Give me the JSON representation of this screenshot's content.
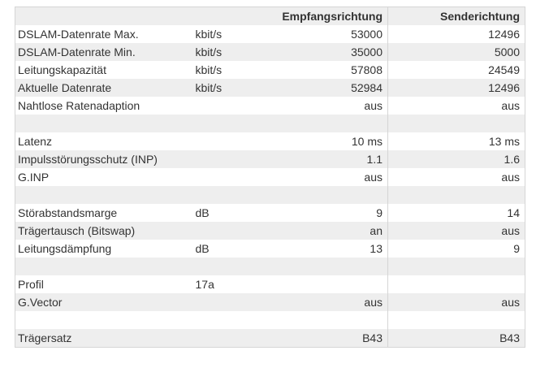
{
  "page": {
    "background_color": "#ffffff"
  },
  "colors": {
    "row_alt_bg": "#eeeeee",
    "header_bg": "#eeeeee",
    "border": "#d5d5d5",
    "text": "#333333"
  },
  "table": {
    "col_headers": [
      "",
      "",
      "Empfangsrichtung",
      "Senderichtung"
    ],
    "rows": [
      {
        "label": "DSLAM-Datenrate Max.",
        "unit": "kbit/s",
        "rx": "53000",
        "tx": "12496"
      },
      {
        "label": "DSLAM-Datenrate Min.",
        "unit": "kbit/s",
        "rx": "35000",
        "tx": "5000"
      },
      {
        "label": "Leitungskapazität",
        "unit": "kbit/s",
        "rx": "57808",
        "tx": "24549"
      },
      {
        "label": "Aktuelle Datenrate",
        "unit": "kbit/s",
        "rx": "52984",
        "tx": "12496"
      },
      {
        "label": "Nahtlose Ratenadaption",
        "unit": "",
        "rx": "aus",
        "tx": "aus"
      },
      {
        "label": "",
        "unit": "",
        "rx": "",
        "tx": ""
      },
      {
        "label": "Latenz",
        "unit": "",
        "rx": "10 ms",
        "tx": "13 ms"
      },
      {
        "label": "Impulsstörungsschutz (INP)",
        "unit": "",
        "rx": "1.1",
        "tx": "1.6"
      },
      {
        "label": "G.INP",
        "unit": "",
        "rx": "aus",
        "tx": "aus"
      },
      {
        "label": "",
        "unit": "",
        "rx": "",
        "tx": ""
      },
      {
        "label": "Störabstandsmarge",
        "unit": "dB",
        "rx": "9",
        "tx": "14"
      },
      {
        "label": "Trägertausch (Bitswap)",
        "unit": "",
        "rx": "an",
        "tx": "aus"
      },
      {
        "label": "Leitungsdämpfung",
        "unit": "dB",
        "rx": "13",
        "tx": "9"
      },
      {
        "label": "",
        "unit": "",
        "rx": "",
        "tx": ""
      },
      {
        "label": "Profil",
        "unit": "17a",
        "rx": "",
        "tx": ""
      },
      {
        "label": "G.Vector",
        "unit": "",
        "rx": "aus",
        "tx": "aus"
      },
      {
        "label": "",
        "unit": "",
        "rx": "",
        "tx": ""
      },
      {
        "label": "Trägersatz",
        "unit": "",
        "rx": "B43",
        "tx": "B43"
      }
    ]
  }
}
